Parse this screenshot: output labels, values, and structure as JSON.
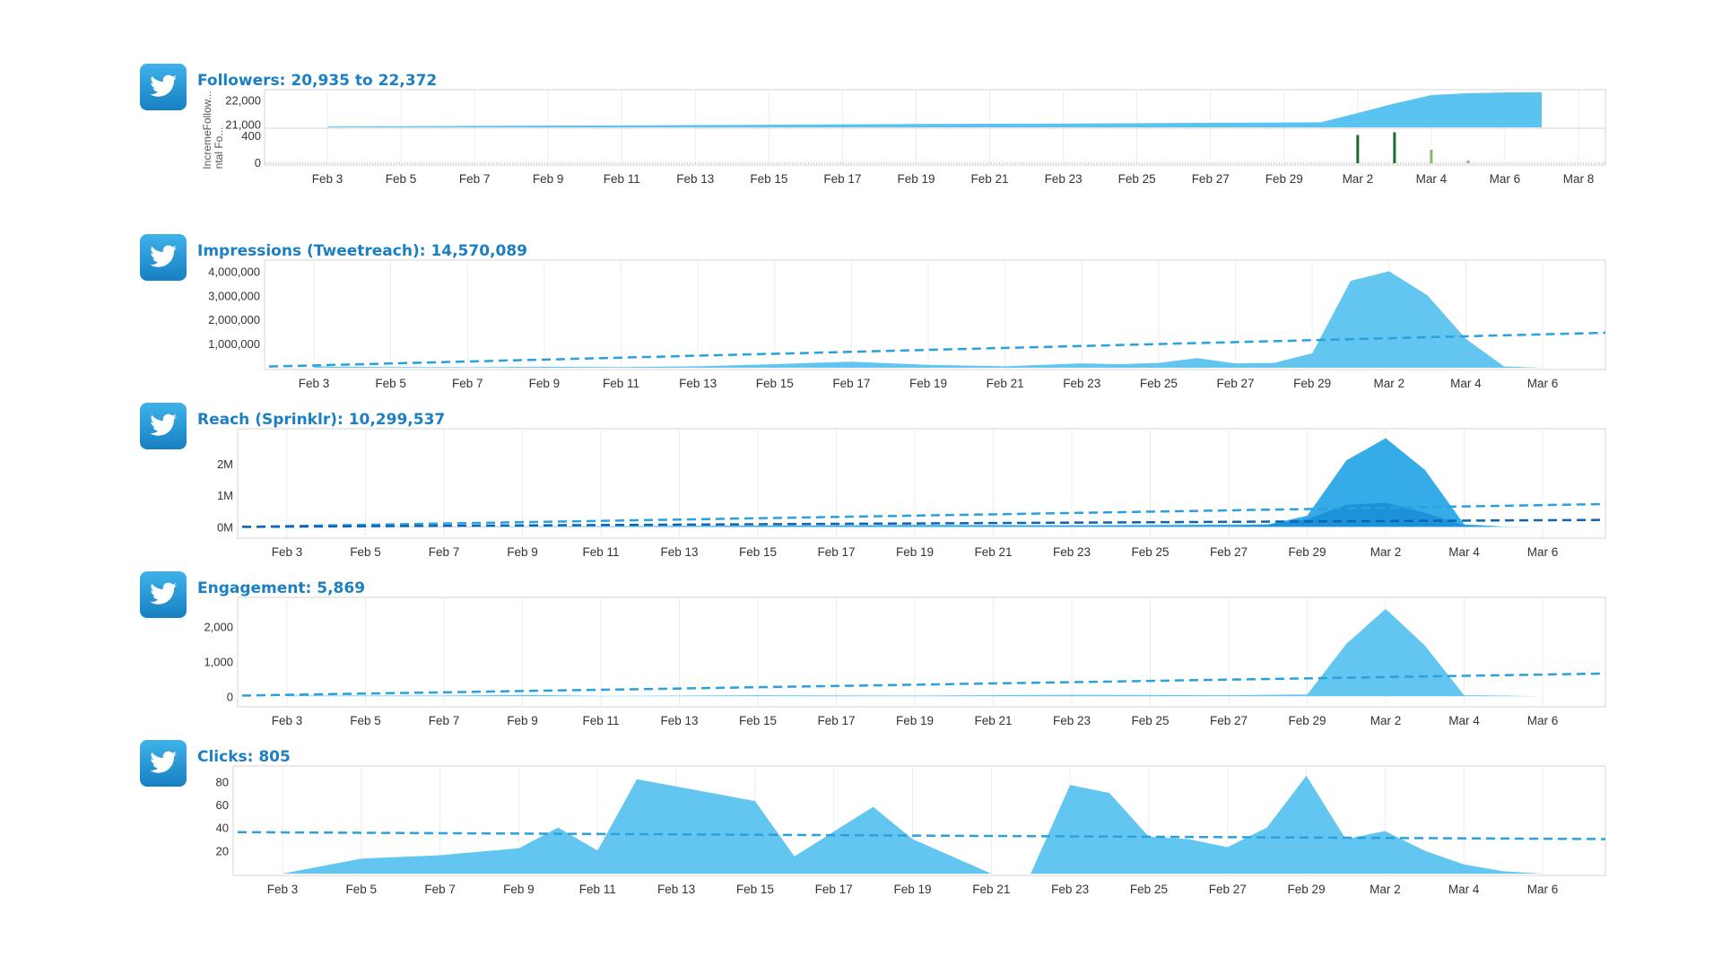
{
  "colors": {
    "fill": "#5bc3ef",
    "fillDark": "#1a8fd8",
    "dash": "#2aa0dd",
    "bar": "#1f6b2d",
    "barLight": "#7fbf6a",
    "title": "#1b7fc4",
    "logo": "#1e9ad6"
  },
  "icons": {
    "logo": "twitter-bird-icon"
  },
  "panels": [
    {
      "title": "Followers: 20,935 to 22,372"
    },
    {
      "title": "Impressions (Tweetreach): 14,570,089"
    },
    {
      "title": "Reach (Sprinklr): 10,299,537"
    },
    {
      "title": "Engagement: 5,869"
    },
    {
      "title": "Clicks: 805"
    }
  ],
  "chart_data": [
    {
      "type": "area",
      "title": "Followers: 20,935 to 22,372",
      "ylabel": "IncremeFollow... / ntal Fo...",
      "x_ticks": [
        "Feb 3",
        "Feb 5",
        "Feb 7",
        "Feb 9",
        "Feb 11",
        "Feb 13",
        "Feb 15",
        "Feb 17",
        "Feb 19",
        "Feb 21",
        "Feb 23",
        "Feb 25",
        "Feb 27",
        "Feb 29",
        "Mar 2",
        "Mar 4",
        "Mar 6",
        "Mar 8"
      ],
      "upper": {
        "y_ticks": [
          "22,000",
          "21,000"
        ],
        "ylim": [
          20900,
          22400
        ],
        "x": [
          "Feb 3",
          "Feb 7",
          "Feb 11",
          "Feb 15",
          "Feb 19",
          "Feb 23",
          "Feb 27",
          "Mar 1",
          "Mar 2",
          "Mar 3",
          "Mar 4",
          "Mar 5",
          "Mar 6",
          "Mar 7"
        ],
        "values": [
          20935,
          20960,
          20980,
          21010,
          21040,
          21060,
          21090,
          21110,
          21500,
          21900,
          22250,
          22330,
          22360,
          22372
        ]
      },
      "lower": {
        "type": "bar",
        "y_ticks": [
          "400",
          "0"
        ],
        "ylim": [
          0,
          480
        ],
        "x": [
          "Mar 2",
          "Mar 3",
          "Mar 4",
          "Mar 5"
        ],
        "values": [
          420,
          460,
          200,
          40
        ]
      }
    },
    {
      "type": "area",
      "title": "Impressions (Tweetreach): 14,570,089",
      "x_ticks": [
        "Feb 3",
        "Feb 5",
        "Feb 7",
        "Feb 9",
        "Feb 11",
        "Feb 13",
        "Feb 15",
        "Feb 17",
        "Feb 19",
        "Feb 21",
        "Feb 23",
        "Feb 25",
        "Feb 27",
        "Feb 29",
        "Mar 2",
        "Mar 4",
        "Mar 6"
      ],
      "y_ticks": [
        "4,000,000",
        "3,000,000",
        "2,000,000",
        "1,000,000"
      ],
      "ylim": [
        0,
        4200000
      ],
      "x": [
        "Feb 3",
        "Feb 5",
        "Feb 7",
        "Feb 9",
        "Feb 11",
        "Feb 13",
        "Feb 15",
        "Feb 17",
        "Feb 19",
        "Feb 21",
        "Feb 23",
        "Feb 24",
        "Feb 25",
        "Feb 26",
        "Feb 27",
        "Feb 28",
        "Feb 29",
        "Mar 1",
        "Mar 2",
        "Mar 3",
        "Mar 4",
        "Mar 5",
        "Mar 6"
      ],
      "values": [
        50000,
        30000,
        20000,
        40000,
        30000,
        60000,
        150000,
        250000,
        120000,
        60000,
        180000,
        150000,
        200000,
        400000,
        180000,
        200000,
        600000,
        3600000,
        4000000,
        3000000,
        1200000,
        50000,
        0
      ],
      "trend": [
        50000,
        1450000
      ]
    },
    {
      "type": "area",
      "title": "Reach (Sprinklr): 10,299,537",
      "x_ticks": [
        "Feb 3",
        "Feb 5",
        "Feb 7",
        "Feb 9",
        "Feb 11",
        "Feb 13",
        "Feb 15",
        "Feb 17",
        "Feb 19",
        "Feb 21",
        "Feb 23",
        "Feb 25",
        "Feb 27",
        "Feb 29",
        "Mar 2",
        "Mar 4",
        "Mar 6"
      ],
      "y_ticks": [
        "2M",
        "1M",
        "0M"
      ],
      "ylim": [
        -300000,
        2900000
      ],
      "series": [
        {
          "x": [
            "Feb 3",
            "Feb 7",
            "Feb 11",
            "Feb 15",
            "Feb 19",
            "Feb 23",
            "Feb 27",
            "Feb 28",
            "Feb 29",
            "Mar 1",
            "Mar 2",
            "Mar 3",
            "Mar 4",
            "Mar 5",
            "Mar 6"
          ],
          "values": [
            0,
            10000,
            20000,
            40000,
            60000,
            50000,
            70000,
            80000,
            350000,
            2100000,
            2800000,
            1800000,
            80000,
            10000,
            0
          ]
        },
        {
          "x": [
            "Feb 3",
            "Feb 27",
            "Feb 28",
            "Feb 29",
            "Mar 1",
            "Mar 2",
            "Mar 3",
            "Mar 4",
            "Mar 5"
          ],
          "values": [
            0,
            20000,
            60000,
            250000,
            700000,
            760000,
            450000,
            40000,
            0
          ]
        }
      ],
      "trend": [
        0,
        720000
      ],
      "trend2": [
        0,
        220000
      ]
    },
    {
      "type": "area",
      "title": "Engagement: 5,869",
      "x_ticks": [
        "Feb 3",
        "Feb 5",
        "Feb 7",
        "Feb 9",
        "Feb 11",
        "Feb 13",
        "Feb 15",
        "Feb 17",
        "Feb 19",
        "Feb 21",
        "Feb 23",
        "Feb 25",
        "Feb 27",
        "Feb 29",
        "Mar 2",
        "Mar 4",
        "Mar 6"
      ],
      "y_ticks": [
        "2,000",
        "1,000",
        "0"
      ],
      "ylim": [
        -250,
        2650
      ],
      "x": [
        "Feb 3",
        "Feb 7",
        "Feb 9",
        "Feb 11",
        "Feb 15",
        "Feb 19",
        "Feb 23",
        "Feb 27",
        "Feb 29",
        "Mar 1",
        "Mar 2",
        "Mar 3",
        "Mar 4",
        "Mar 5",
        "Mar 6"
      ],
      "values": [
        20,
        20,
        40,
        10,
        30,
        20,
        40,
        30,
        50,
        1500,
        2500,
        1450,
        30,
        20,
        0
      ],
      "trend": [
        20,
        650
      ]
    },
    {
      "type": "area",
      "title": "Clicks: 805",
      "x_ticks": [
        "Feb 3",
        "Feb 5",
        "Feb 7",
        "Feb 9",
        "Feb 11",
        "Feb 13",
        "Feb 15",
        "Feb 17",
        "Feb 19",
        "Feb 21",
        "Feb 23",
        "Feb 25",
        "Feb 27",
        "Feb 29",
        "Mar 2",
        "Mar 4",
        "Mar 6"
      ],
      "y_ticks": [
        "80",
        "60",
        "40",
        "20"
      ],
      "ylim": [
        0,
        88
      ],
      "x": [
        "Feb 3",
        "Feb 5",
        "Feb 7",
        "Feb 9",
        "Feb 10",
        "Feb 11",
        "Feb 12",
        "Feb 15",
        "Feb 16",
        "Feb 18",
        "Feb 19",
        "Feb 21",
        "Feb 22",
        "Feb 23",
        "Feb 24",
        "Feb 25",
        "Feb 26",
        "Feb 27",
        "Feb 28",
        "Feb 29",
        "Mar 1",
        "Mar 2",
        "Mar 3",
        "Mar 4",
        "Mar 5",
        "Mar 6"
      ],
      "values": [
        0,
        13,
        16,
        22,
        40,
        20,
        82,
        63,
        15,
        58,
        30,
        0,
        0,
        77,
        70,
        32,
        30,
        23,
        40,
        85,
        30,
        37,
        20,
        8,
        2,
        0
      ],
      "trend": [
        36,
        30
      ]
    }
  ]
}
